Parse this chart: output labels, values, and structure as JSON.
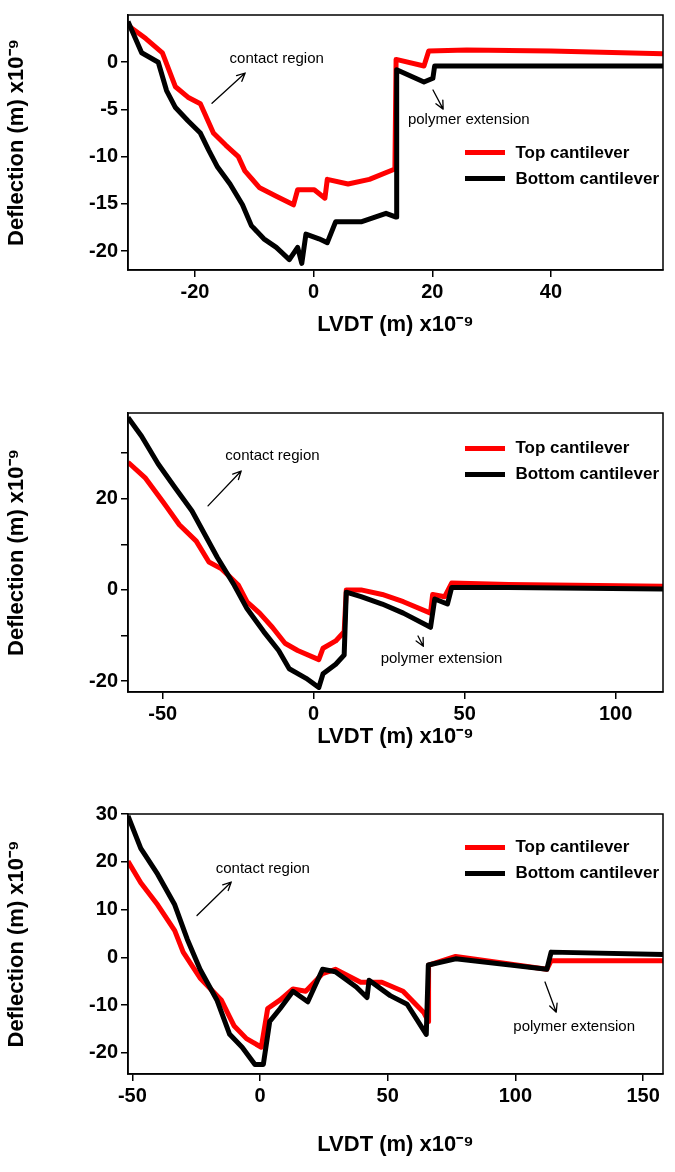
{
  "chart_data": [
    {
      "type": "line",
      "xlabel": "LVDT (m) x10⁻⁹",
      "ylabel": "Deflection (m) x10⁻⁹",
      "xlim": [
        -31.3,
        58.9
      ],
      "xticks": [
        -20,
        0,
        20,
        40
      ],
      "ylim": [
        -22,
        5
      ],
      "yticks": [
        -20,
        -15,
        -10,
        -5,
        0
      ],
      "legend": "right",
      "marker": "none",
      "annotations": [
        "contact region",
        "polymer extension"
      ],
      "series": [
        {
          "name": "Top cantilever",
          "color": "#ff0000",
          "x": [
            -31.3,
            -28.3,
            -25.5,
            -23.3,
            -21.2,
            -19.1,
            -16.9,
            -14.8,
            -12.7,
            -11.6,
            -9.1,
            -6.3,
            -3.4,
            -2.7,
            0.1,
            1.9,
            2.3,
            5.8,
            9.4,
            13.7,
            13.9,
            18.6,
            19.4,
            25.8,
            40,
            58.9
          ],
          "values": [
            3.9,
            2.5,
            1,
            -2.6,
            -3.7,
            -4.4,
            -7.5,
            -8.8,
            -10,
            -11.5,
            -13.3,
            -14.2,
            -15.1,
            -13.5,
            -13.5,
            -14.4,
            -12.4,
            -12.9,
            -12.4,
            -11.3,
            0.3,
            -0.4,
            1.2,
            1.3,
            1.2,
            0.9
          ]
        },
        {
          "name": "Bottom cantilever",
          "color": "#000000",
          "x": [
            -31.3,
            -29,
            -26.2,
            -24.8,
            -23.3,
            -21.2,
            -19.1,
            -17.7,
            -16.2,
            -14.1,
            -12,
            -10.5,
            -8.4,
            -6.3,
            -4.1,
            -2.7,
            -2,
            -1.3,
            0.9,
            2.3,
            3.7,
            8,
            12.2,
            13.9,
            14,
            18.6,
            20.1,
            20.4,
            32.9,
            58.9
          ],
          "values": [
            4.3,
            1,
            0,
            -3,
            -4.8,
            -6.2,
            -7.5,
            -9.3,
            -11.1,
            -12.9,
            -15.1,
            -17.3,
            -18.7,
            -19.6,
            -20.9,
            -19.6,
            -21.3,
            -18.2,
            -18.7,
            -19.1,
            -16.9,
            -16.9,
            -16,
            -16.4,
            -0.8,
            -2.1,
            -1.7,
            -0.4,
            -0.4,
            -0.4
          ]
        }
      ]
    },
    {
      "type": "line",
      "xlabel": "LVDT (m) x10⁻⁹",
      "ylabel": "Deflection (m) x10⁻⁹",
      "xlim": [
        -61.5,
        115.7
      ],
      "xticks": [
        -50,
        0,
        50,
        100
      ],
      "ylim": [
        -22.4,
        38.8
      ],
      "yticks": [
        -20,
        {
          "value": -10,
          "label": null
        },
        0,
        {
          "value": 10,
          "label": null
        },
        20,
        {
          "value": 30,
          "label": null
        }
      ],
      "legend": "top right",
      "marker": "none",
      "annotations": [
        "contact region",
        "polymer extension"
      ],
      "series": [
        {
          "name": "Top cantilever",
          "color": "#ff0000",
          "x": [
            -61.5,
            -55.7,
            -50,
            -44.5,
            -38.9,
            -34.7,
            -30.5,
            -24.9,
            -22.1,
            -17.9,
            -13.7,
            -9.5,
            -5.3,
            1.7,
            3.1,
            7.3,
            10.1,
            10.8,
            15.7,
            22.7,
            29.7,
            38.7,
            39.4,
            43.4,
            45.7,
            64.6,
            115.7
          ],
          "values": [
            28,
            24.5,
            19.4,
            14.3,
            10.7,
            6.1,
            4.6,
            1,
            -2.6,
            -5.1,
            -8.2,
            -11.7,
            -13.3,
            -15.3,
            -12.8,
            -11.2,
            -9.2,
            0,
            0,
            -1,
            -2.6,
            -5.1,
            -1,
            -1.5,
            1.5,
            1.2,
            0.8
          ]
        },
        {
          "name": "Bottom cantilever",
          "color": "#000000",
          "x": [
            -61.5,
            -57,
            -51.5,
            -45.9,
            -40.3,
            -36.1,
            -31.9,
            -26.3,
            -22.1,
            -16.5,
            -11.6,
            -8.1,
            -2.5,
            1.7,
            3.1,
            7.3,
            10.1,
            10.8,
            15.7,
            22.7,
            29.7,
            38.7,
            40.1,
            44.3,
            45.7,
            64.6,
            115.7
          ],
          "values": [
            37.8,
            33.7,
            27.6,
            22.4,
            17.3,
            12.2,
            7.1,
            1,
            -4.1,
            -9.2,
            -13.3,
            -17.3,
            -19.4,
            -21.4,
            -18.4,
            -16.3,
            -14.3,
            -0.5,
            -1.5,
            -3.1,
            -5.1,
            -8.2,
            -2,
            -3.1,
            0.5,
            0.5,
            0.2
          ]
        }
      ]
    },
    {
      "type": "line",
      "xlabel": "LVDT (m) x10⁻⁹",
      "ylabel": "Deflection (m) x10⁻⁹",
      "xlim": [
        -51.7,
        157.8
      ],
      "xticks": [
        -50,
        0,
        50,
        100,
        150
      ],
      "ylim": [
        -24.4,
        30
      ],
      "yticks": [
        -20,
        -10,
        0,
        10,
        20,
        30
      ],
      "legend": "top right",
      "marker": "none",
      "annotations": [
        "contact region",
        "polymer extension"
      ],
      "series": [
        {
          "name": "Top cantilever",
          "color": "#ff0000",
          "x": [
            -51.7,
            -46.7,
            -40.1,
            -33.4,
            -30.1,
            -23.5,
            -15.2,
            -10.2,
            -5.3,
            0.5,
            3,
            7.9,
            12.9,
            17.9,
            24.5,
            29.5,
            39.4,
            42.7,
            47.7,
            56,
            64.2,
            65.9,
            66,
            76.6,
            112.3,
            114,
            157.8
          ],
          "values": [
            20.1,
            15.6,
            11,
            5.6,
            1.1,
            -4.3,
            -8.9,
            -14.3,
            -17,
            -18.8,
            -10.7,
            -8.9,
            -6.6,
            -7.1,
            -3.4,
            -2.5,
            -5.2,
            -5.2,
            -5.2,
            -7.1,
            -11.6,
            -13.4,
            -1.6,
            0.2,
            -2.5,
            -0.7,
            -0.7
          ]
        },
        {
          "name": "Bottom cantilever",
          "color": "#000000",
          "x": [
            -51.7,
            -46.7,
            -40.1,
            -33.4,
            -28.5,
            -23.5,
            -16.9,
            -11.9,
            -7,
            -2,
            1.3,
            3.8,
            7.9,
            12.9,
            18.7,
            24.5,
            29.5,
            37.7,
            41.9,
            42.7,
            51,
            57.6,
            65.1,
            65.9,
            76.6,
            112.3,
            114,
            157.8
          ],
          "values": [
            29.6,
            22.8,
            17.4,
            11,
            3.8,
            -2.5,
            -8.9,
            -16.1,
            -18.8,
            -22.4,
            -22.4,
            -13.4,
            -10.7,
            -7.1,
            -9.3,
            -2.5,
            -3,
            -6.2,
            -8.4,
            -4.8,
            -8,
            -9.8,
            -16.1,
            -1.6,
            -0.3,
            -2.5,
            1.1,
            0.6
          ]
        }
      ]
    }
  ]
}
